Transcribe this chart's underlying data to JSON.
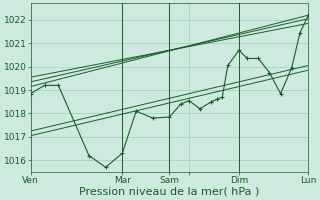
{
  "background_color": "#ceeade",
  "grid_color": "#9ecfbb",
  "line_color": "#1a5c28",
  "ylabel_values": [
    1016,
    1017,
    1018,
    1019,
    1020,
    1021,
    1022
  ],
  "xlim": [
    0,
    100
  ],
  "ylim": [
    1015.5,
    1022.7
  ],
  "xlabel": "Pression niveau de la mer( hPa )",
  "xlabel_fontsize": 8,
  "tick_fontsize": 6.5,
  "x_ticks": [
    0,
    33,
    50,
    57,
    75,
    100
  ],
  "x_tick_labels": [
    "Ven",
    "Mar",
    "Sam",
    "",
    "Dim",
    "Lun"
  ],
  "vline_positions": [
    33,
    50,
    75,
    100
  ],
  "main_series": [
    [
      0,
      1018.85
    ],
    [
      5,
      1019.2
    ],
    [
      10,
      1019.2
    ],
    [
      21,
      1016.2
    ],
    [
      27,
      1015.7
    ],
    [
      33,
      1016.3
    ],
    [
      38,
      1018.1
    ],
    [
      44,
      1017.8
    ],
    [
      50,
      1017.85
    ],
    [
      54,
      1018.4
    ],
    [
      57,
      1018.55
    ],
    [
      61,
      1018.2
    ],
    [
      65,
      1018.5
    ],
    [
      67,
      1018.6
    ],
    [
      69,
      1018.7
    ],
    [
      71,
      1020.05
    ],
    [
      75,
      1020.7
    ],
    [
      78,
      1020.35
    ],
    [
      82,
      1020.35
    ],
    [
      86,
      1019.75
    ],
    [
      90,
      1018.85
    ],
    [
      94,
      1019.95
    ],
    [
      97,
      1021.45
    ],
    [
      100,
      1022.2
    ]
  ],
  "upper_line1": [
    [
      0,
      1019.15
    ],
    [
      100,
      1022.2
    ]
  ],
  "upper_line2": [
    [
      0,
      1019.35
    ],
    [
      100,
      1022.05
    ]
  ],
  "upper_line3": [
    [
      0,
      1019.55
    ],
    [
      100,
      1021.85
    ]
  ],
  "lower_line1": [
    [
      0,
      1017.25
    ],
    [
      100,
      1020.05
    ]
  ],
  "lower_line2": [
    [
      0,
      1017.05
    ],
    [
      100,
      1019.85
    ]
  ]
}
